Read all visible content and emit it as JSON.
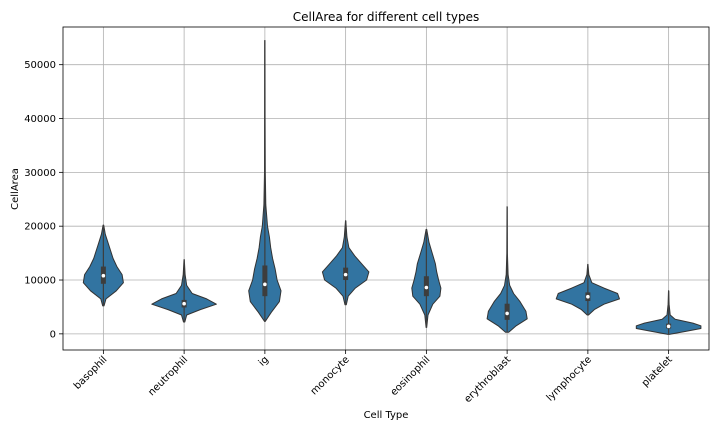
{
  "chart_data": {
    "type": "violin",
    "title": "CellArea for different cell types",
    "xlabel": "Cell Type",
    "ylabel": "CellArea",
    "ylim": [
      -3000,
      57000
    ],
    "yticks": [
      0,
      10000,
      20000,
      30000,
      40000,
      50000
    ],
    "grid": true,
    "color": "#3274a1",
    "categories": [
      "basophil",
      "neutrophil",
      "ig",
      "monocyte",
      "eosinophil",
      "erythroblast",
      "lymphocyte",
      "platelet"
    ],
    "violins": [
      {
        "category": "basophil",
        "min": 5200,
        "q1": 9300,
        "median": 10800,
        "q3": 12500,
        "max": 20200,
        "profile": [
          [
            5200,
            0.02
          ],
          [
            6500,
            0.08
          ],
          [
            8000,
            0.4
          ],
          [
            9500,
            0.62
          ],
          [
            11000,
            0.58
          ],
          [
            12500,
            0.42
          ],
          [
            14000,
            0.3
          ],
          [
            15500,
            0.22
          ],
          [
            17000,
            0.14
          ],
          [
            18500,
            0.06
          ],
          [
            20200,
            0.01
          ]
        ]
      },
      {
        "category": "neutrophil",
        "min": 2200,
        "q1": 4900,
        "median": 5600,
        "q3": 6300,
        "max": 13800,
        "profile": [
          [
            2200,
            0.02
          ],
          [
            3500,
            0.08
          ],
          [
            4500,
            0.5
          ],
          [
            5500,
            1.0
          ],
          [
            6500,
            0.7
          ],
          [
            7500,
            0.25
          ],
          [
            9000,
            0.08
          ],
          [
            11000,
            0.03
          ],
          [
            13800,
            0.005
          ]
        ]
      },
      {
        "category": "ig",
        "min": 2300,
        "q1": 7000,
        "median": 9200,
        "q3": 12700,
        "max": 54500,
        "profile": [
          [
            2300,
            0.01
          ],
          [
            4000,
            0.2
          ],
          [
            6000,
            0.45
          ],
          [
            8000,
            0.5
          ],
          [
            10000,
            0.38
          ],
          [
            12000,
            0.32
          ],
          [
            14000,
            0.24
          ],
          [
            16000,
            0.18
          ],
          [
            18000,
            0.14
          ],
          [
            20000,
            0.08
          ],
          [
            24000,
            0.03
          ],
          [
            30000,
            0.012
          ],
          [
            40000,
            0.008
          ],
          [
            54500,
            0.004
          ]
        ]
      },
      {
        "category": "monocyte",
        "min": 5400,
        "q1": 10000,
        "median": 11000,
        "q3": 12300,
        "max": 21000,
        "profile": [
          [
            5400,
            0.02
          ],
          [
            7000,
            0.08
          ],
          [
            8500,
            0.3
          ],
          [
            10000,
            0.65
          ],
          [
            11500,
            0.72
          ],
          [
            13000,
            0.5
          ],
          [
            14500,
            0.28
          ],
          [
            16000,
            0.1
          ],
          [
            18000,
            0.04
          ],
          [
            21000,
            0.005
          ]
        ]
      },
      {
        "category": "eosinophil",
        "min": 1200,
        "q1": 7000,
        "median": 8600,
        "q3": 10700,
        "max": 19400,
        "profile": [
          [
            1200,
            0.01
          ],
          [
            3500,
            0.05
          ],
          [
            5500,
            0.2
          ],
          [
            7000,
            0.42
          ],
          [
            8500,
            0.45
          ],
          [
            10000,
            0.38
          ],
          [
            11500,
            0.32
          ],
          [
            13000,
            0.28
          ],
          [
            15000,
            0.18
          ],
          [
            17000,
            0.08
          ],
          [
            19400,
            0.01
          ]
        ]
      },
      {
        "category": "erythroblast",
        "min": 300,
        "q1": 2600,
        "median": 3800,
        "q3": 5600,
        "max": 23600,
        "profile": [
          [
            300,
            0.05
          ],
          [
            1500,
            0.28
          ],
          [
            2800,
            0.62
          ],
          [
            4200,
            0.58
          ],
          [
            6000,
            0.4
          ],
          [
            7500,
            0.2
          ],
          [
            9000,
            0.08
          ],
          [
            11000,
            0.03
          ],
          [
            15000,
            0.01
          ],
          [
            23600,
            0.003
          ]
        ]
      },
      {
        "category": "lymphocyte",
        "min": 3500,
        "q1": 6100,
        "median": 6900,
        "q3": 7700,
        "max": 12900,
        "profile": [
          [
            3500,
            0.02
          ],
          [
            4500,
            0.2
          ],
          [
            5500,
            0.5
          ],
          [
            6500,
            0.98
          ],
          [
            7500,
            0.92
          ],
          [
            8500,
            0.5
          ],
          [
            9500,
            0.12
          ],
          [
            11000,
            0.03
          ],
          [
            12900,
            0.005
          ]
        ]
      },
      {
        "category": "platelet",
        "min": -100,
        "q1": 1000,
        "median": 1400,
        "q3": 1900,
        "max": 8000,
        "profile": [
          [
            -100,
            0.02
          ],
          [
            500,
            0.55
          ],
          [
            1000,
            1.0
          ],
          [
            1500,
            1.0
          ],
          [
            2000,
            0.75
          ],
          [
            2700,
            0.2
          ],
          [
            3500,
            0.05
          ],
          [
            5500,
            0.015
          ],
          [
            8000,
            0.003
          ]
        ]
      }
    ]
  }
}
